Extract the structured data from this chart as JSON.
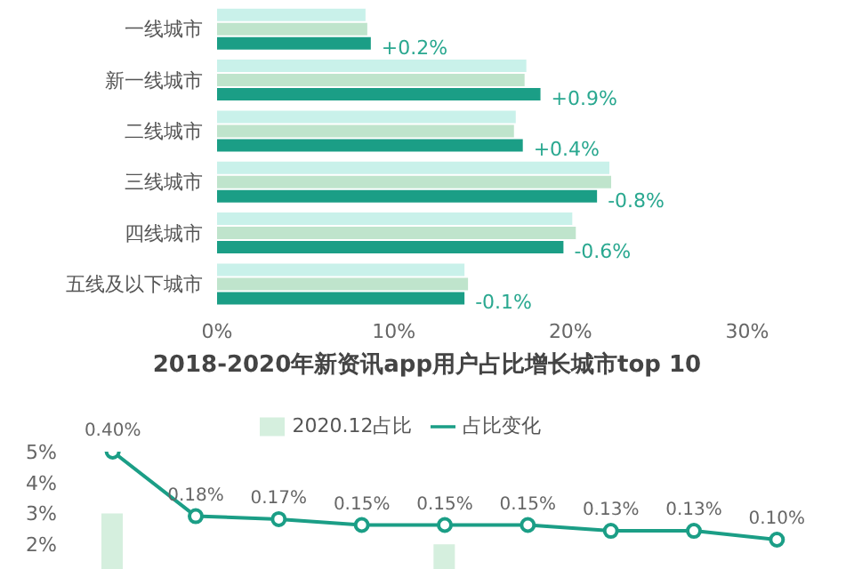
{
  "chart_data": [
    {
      "type": "bar",
      "orientation": "horizontal",
      "categories": [
        "一线城市",
        "新一线城市",
        "二线城市",
        "三线城市",
        "四线城市",
        "五线及以下城市"
      ],
      "series": [
        {
          "color": "#c9f1ea",
          "values": [
            8.4,
            17.5,
            16.9,
            22.2,
            20.1,
            14.0
          ]
        },
        {
          "color": "#bfe4cc",
          "values": [
            8.5,
            17.4,
            16.8,
            22.3,
            20.3,
            14.2
          ]
        },
        {
          "color": "#1b9e86",
          "values": [
            8.7,
            18.3,
            17.3,
            21.5,
            19.6,
            14.0
          ]
        }
      ],
      "annotations": [
        {
          "text": "+0.2%",
          "x": 8.7,
          "y": "一线城市"
        },
        {
          "text": "+0.9%",
          "x": 18.3,
          "y": "新一线城市"
        },
        {
          "text": "+0.4%",
          "x": 17.3,
          "y": "二线城市"
        },
        {
          "text": "-0.8%",
          "x": 21.5,
          "y": "三线城市"
        },
        {
          "text": "-0.6%",
          "x": 19.6,
          "y": "四线城市"
        },
        {
          "text": "-0.1%",
          "x": 14.0,
          "y": "五线及以下城市"
        }
      ],
      "xlim": [
        0,
        30
      ],
      "xticks": [
        {
          "value": 0,
          "label": "0%"
        },
        {
          "value": 10,
          "label": "10%"
        },
        {
          "value": 20,
          "label": "20%"
        },
        {
          "value": 30,
          "label": "30%"
        }
      ],
      "grid": false,
      "legend": false
    },
    {
      "type": "bar",
      "title": "2018-2020年新资讯app用户占比增长城市top 10",
      "categories": [
        null,
        null,
        null,
        null,
        null,
        null,
        null,
        null,
        null
      ],
      "series": [
        {
          "name": "2020.12占比",
          "type": "bar",
          "color": "#d5efde",
          "values": [
            3.0,
            null,
            null,
            null,
            2.0,
            null,
            null,
            null,
            null
          ]
        },
        {
          "name": "占比变化",
          "type": "line",
          "axis": "y2",
          "color": "#1b9e86",
          "marker": "circle",
          "values": [
            0.4,
            0.18,
            0.17,
            0.15,
            0.15,
            0.15,
            0.13,
            0.13,
            0.1
          ],
          "value_labels": [
            "0.40%",
            "0.18%",
            "0.17%",
            "0.15%",
            "0.15%",
            "0.15%",
            "0.13%",
            "0.13%",
            "0.10%"
          ]
        }
      ],
      "ylim": [
        1.2,
        5
      ],
      "yticks": [
        {
          "value": 2,
          "label": "2%"
        },
        {
          "value": 3,
          "label": "3%"
        },
        {
          "value": 4,
          "label": "4%"
        },
        {
          "value": 5,
          "label": "5%"
        }
      ],
      "tick_labels": "y",
      "grid": false,
      "legend": "top"
    }
  ]
}
